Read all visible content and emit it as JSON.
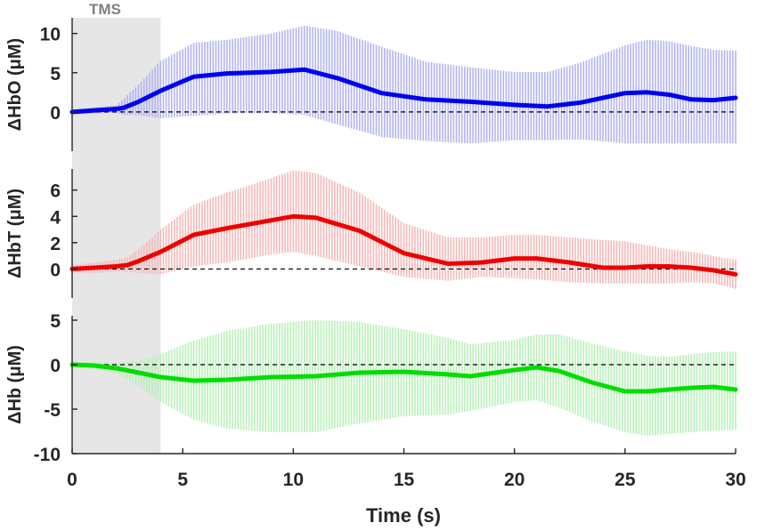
{
  "chart_data": {
    "type": "line",
    "stimulus": {
      "label": "TMS",
      "x_range": [
        0,
        4
      ],
      "color": "#e6e6e6"
    },
    "xaxis": {
      "label": "Time (s)",
      "ticks": [
        "0",
        "5",
        "10",
        "15",
        "20",
        "25",
        "30"
      ],
      "tick_values": [
        0,
        5,
        10,
        15,
        20,
        25,
        30
      ],
      "xlim": [
        0,
        30
      ]
    },
    "panels": [
      {
        "name": "hbo",
        "ylabel": "ΔHbO (μM)",
        "ylim": [
          -5,
          12
        ],
        "yticks": [
          "0",
          "5",
          "10"
        ],
        "ytick_values": [
          0,
          5,
          10
        ],
        "line_color": "#0000ee",
        "band_color": "#b3b3f5",
        "series": {
          "x": [
            0,
            1,
            2,
            2.3,
            3,
            4,
            5.5,
            7,
            9,
            10.5,
            12,
            14,
            16,
            18,
            20,
            21.5,
            23,
            25,
            26,
            27,
            28,
            29,
            30
          ],
          "y": [
            0,
            0.2,
            0.4,
            0.5,
            1.3,
            2.7,
            4.5,
            4.9,
            5.1,
            5.4,
            4.3,
            2.4,
            1.6,
            1.3,
            0.9,
            0.7,
            1.2,
            2.4,
            2.5,
            2.2,
            1.6,
            1.5,
            1.8
          ],
          "upper": [
            0.3,
            0.6,
            0.9,
            1.6,
            3.5,
            6.5,
            8.8,
            9.2,
            10.0,
            11.0,
            10.3,
            8.3,
            6.4,
            5.7,
            5.1,
            5.1,
            6.3,
            8.5,
            9.2,
            9.0,
            8.4,
            7.9,
            7.8
          ],
          "lower": [
            -0.3,
            -0.2,
            -0.1,
            -0.4,
            -0.4,
            -0.8,
            -0.5,
            -0.2,
            -0.1,
            -0.4,
            -1.6,
            -3.2,
            -3.7,
            -4.0,
            -3.6,
            -3.6,
            -3.5,
            -4.0,
            -4.0,
            -4.0,
            -4.0,
            -4.0,
            -4.0
          ]
        }
      },
      {
        "name": "hbt",
        "ylabel": "ΔHbT (μM)",
        "ylim": [
          -2.2,
          7.6
        ],
        "yticks": [
          "0",
          "2",
          "4",
          "6"
        ],
        "ytick_values": [
          0,
          2,
          4,
          6
        ],
        "line_color": "#ee0000",
        "band_color": "#f5b8b8",
        "series": {
          "x": [
            0,
            1,
            2,
            2.5,
            3,
            4,
            5.5,
            7,
            9,
            10,
            11,
            13,
            15,
            17,
            18.5,
            20,
            21,
            22.5,
            24,
            25,
            26,
            27,
            28,
            29,
            30
          ],
          "y": [
            0,
            0.1,
            0.2,
            0.3,
            0.6,
            1.3,
            2.6,
            3.1,
            3.7,
            4.0,
            3.9,
            2.9,
            1.2,
            0.4,
            0.5,
            0.8,
            0.8,
            0.5,
            0.1,
            0.1,
            0.2,
            0.2,
            0.1,
            -0.1,
            -0.4
          ],
          "upper": [
            0.3,
            0.5,
            0.7,
            0.9,
            1.5,
            3.0,
            4.9,
            5.8,
            6.9,
            7.5,
            7.3,
            5.8,
            3.5,
            2.4,
            2.4,
            2.6,
            2.6,
            2.4,
            2.2,
            2.1,
            1.8,
            1.5,
            1.3,
            1.0,
            0.7
          ],
          "lower": [
            -0.3,
            -0.3,
            -0.2,
            -0.2,
            -0.3,
            -0.4,
            0.2,
            0.5,
            1.1,
            1.3,
            1.0,
            0.2,
            -0.6,
            -0.9,
            -0.6,
            -0.7,
            -0.8,
            -1.0,
            -1.1,
            -1.1,
            -1.1,
            -1.1,
            -1.0,
            -1.1,
            -1.5
          ]
        }
      },
      {
        "name": "hb",
        "ylabel": "ΔHb (μM)",
        "ylim": [
          -10,
          5.5
        ],
        "yticks": [
          "-10",
          "-5",
          "0",
          "5"
        ],
        "ytick_values": [
          -10,
          -5,
          0,
          5
        ],
        "line_color": "#00dd00",
        "band_color": "#b8f0b8",
        "series": {
          "x": [
            0,
            1,
            2,
            3,
            4,
            5.5,
            7,
            9,
            11,
            13,
            15,
            17,
            18,
            20,
            21,
            22,
            23.5,
            25,
            26,
            27,
            28,
            29,
            30
          ],
          "y": [
            0,
            -0.1,
            -0.4,
            -0.9,
            -1.4,
            -1.8,
            -1.7,
            -1.4,
            -1.3,
            -0.9,
            -0.8,
            -1.1,
            -1.3,
            -0.6,
            -0.3,
            -0.7,
            -2.0,
            -3.0,
            -3.0,
            -2.8,
            -2.6,
            -2.5,
            -2.8
          ],
          "upper": [
            0.3,
            0.3,
            0.2,
            0.4,
            1.2,
            2.7,
            3.8,
            4.6,
            5.0,
            4.8,
            4.0,
            3.0,
            2.3,
            2.8,
            3.4,
            3.4,
            2.4,
            1.5,
            1.0,
            0.9,
            1.2,
            1.4,
            1.5
          ],
          "lower": [
            -0.3,
            -0.5,
            -1.0,
            -2.4,
            -4.2,
            -6.2,
            -7.2,
            -7.6,
            -7.6,
            -6.6,
            -5.8,
            -5.6,
            -5.2,
            -4.2,
            -4.0,
            -4.8,
            -6.4,
            -7.6,
            -8.0,
            -7.8,
            -7.6,
            -7.4,
            -7.3
          ]
        }
      }
    ],
    "zero_line": {
      "style": "dashed",
      "color": "#000000"
    }
  }
}
